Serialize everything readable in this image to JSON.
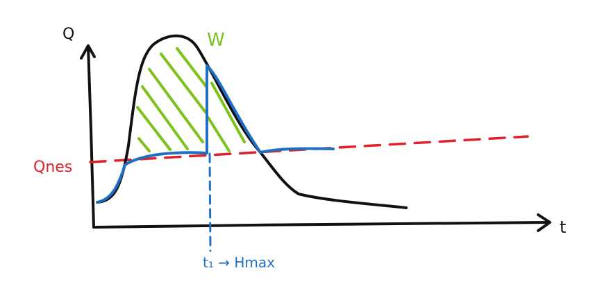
{
  "axes": {
    "y_label": "Q",
    "x_label": "t"
  },
  "labels": {
    "w": "W",
    "q_nes": "Qnes",
    "t1": "t₁ → Hmax"
  }
}
